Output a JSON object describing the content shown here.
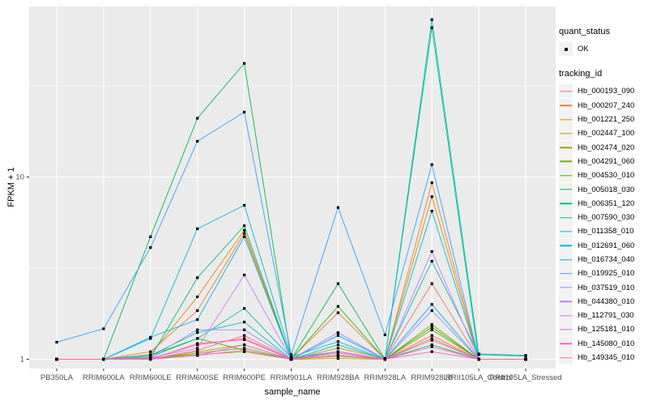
{
  "chart_data": {
    "type": "line",
    "title": "",
    "xlabel": "sample_name",
    "ylabel": "FPKM + 1",
    "y_scale": "log10",
    "y_ticks": [
      1,
      10
    ],
    "y_minor_ticks": [
      3.1623,
      31.623
    ],
    "ylim": [
      0.89,
      87
    ],
    "grid": "on",
    "legend_position": "right",
    "point_shape": "filled-black-square",
    "categories": [
      "PB350LA",
      "RRIM600LA",
      "RRIM600LE",
      "RRIM600SE",
      "RRIM600PE",
      "RRIM901LA",
      "RRIM928BA",
      "RRIM928LA",
      "RRIM928LB",
      "RRII105LA_Control",
      "RRII105LA_Stressed"
    ],
    "series": [
      {
        "name": "Hb_000193_090",
        "color": "#F8766D",
        "values": [
          1.0,
          1.0,
          1.01,
          1.2,
          1.3,
          1.0,
          1.1,
          1.0,
          2.6,
          1.0,
          1.0
        ]
      },
      {
        "name": "Hb_000207_240",
        "color": "#EA8331",
        "values": [
          1.0,
          1.0,
          1.1,
          1.85,
          4.9,
          1.01,
          1.8,
          1.0,
          9.3,
          1.0,
          1.0
        ]
      },
      {
        "name": "Hb_001221_250",
        "color": "#D89000",
        "values": [
          1.0,
          1.0,
          1.06,
          2.2,
          5.1,
          1.0,
          1.15,
          1.01,
          7.8,
          1.0,
          1.0
        ]
      },
      {
        "name": "Hb_002447_100",
        "color": "#C09B00",
        "values": [
          1.0,
          1.0,
          1.0,
          1.1,
          1.2,
          1.0,
          1.05,
          1.0,
          1.3,
          1.0,
          1.0
        ]
      },
      {
        "name": "Hb_002474_020",
        "color": "#A3A500",
        "values": [
          1.0,
          1.0,
          1.01,
          1.06,
          1.1,
          1.0,
          1.01,
          1.0,
          1.45,
          1.0,
          1.0
        ]
      },
      {
        "name": "Hb_004291_060",
        "color": "#7CAE00",
        "values": [
          1.0,
          1.0,
          1.0,
          1.08,
          1.15,
          1.0,
          1.04,
          1.0,
          1.55,
          1.0,
          1.0
        ]
      },
      {
        "name": "Hb_004530_010",
        "color": "#39B600",
        "values": [
          1.0,
          1.0,
          1.05,
          1.3,
          1.12,
          1.0,
          1.95,
          1.0,
          1.5,
          1.0,
          1.0
        ]
      },
      {
        "name": "Hb_005018_030",
        "color": "#00BB4E",
        "values": [
          1.0,
          1.0,
          4.7,
          21.0,
          42.0,
          1.0,
          2.6,
          1.0,
          1.2,
          1.0,
          1.0
        ]
      },
      {
        "name": "Hb_006351_120",
        "color": "#00BF7D",
        "values": [
          1.0,
          1.0,
          1.02,
          2.8,
          5.4,
          1.0,
          1.1,
          1.0,
          66.0,
          1.0,
          1.0
        ]
      },
      {
        "name": "Hb_007590_030",
        "color": "#00C1A3",
        "values": [
          1.0,
          1.0,
          1.03,
          1.3,
          1.9,
          1.02,
          1.1,
          1.0,
          3.45,
          1.06,
          1.04
        ]
      },
      {
        "name": "Hb_011358_010",
        "color": "#00BFC4",
        "values": [
          1.0,
          1.0,
          1.05,
          1.4,
          1.6,
          1.0,
          1.2,
          1.0,
          73.0,
          1.07,
          1.05
        ]
      },
      {
        "name": "Hb_012691_060",
        "color": "#00BAE0",
        "values": [
          1.0,
          1.0,
          1.3,
          5.2,
          7.0,
          1.03,
          1.25,
          1.0,
          6.5,
          1.0,
          1.0
        ]
      },
      {
        "name": "Hb_016734_040",
        "color": "#00B0F6",
        "values": [
          1.0,
          1.0,
          1.32,
          1.65,
          4.7,
          1.0,
          1.35,
          1.0,
          2.0,
          1.0,
          1.0
        ]
      },
      {
        "name": "Hb_019925_010",
        "color": "#35A2FF",
        "values": [
          1.24,
          1.47,
          4.1,
          15.7,
          22.7,
          1.06,
          6.8,
          1.36,
          11.7,
          1.0,
          1.0
        ]
      },
      {
        "name": "Hb_037519_010",
        "color": "#9590FF",
        "values": [
          1.0,
          1.0,
          1.02,
          1.45,
          1.45,
          1.0,
          1.4,
          1.0,
          1.85,
          1.0,
          1.0
        ]
      },
      {
        "name": "Hb_044380_010",
        "color": "#C77CFF",
        "values": [
          1.0,
          1.0,
          1.02,
          1.15,
          2.9,
          1.0,
          1.4,
          1.0,
          3.9,
          1.0,
          1.0
        ]
      },
      {
        "name": "Hb_112791_030",
        "color": "#E76BF3",
        "values": [
          1.0,
          1.0,
          1.0,
          1.05,
          1.2,
          1.0,
          1.1,
          1.0,
          1.27,
          1.0,
          1.0
        ]
      },
      {
        "name": "Hb_125181_010",
        "color": "#FA62DB",
        "values": [
          1.0,
          1.0,
          1.0,
          1.05,
          1.12,
          1.0,
          1.05,
          1.0,
          1.17,
          1.0,
          1.0
        ]
      },
      {
        "name": "Hb_145080_010",
        "color": "#FF62BC",
        "values": [
          1.0,
          1.0,
          1.0,
          1.22,
          1.28,
          1.0,
          1.05,
          1.0,
          1.1,
          1.0,
          1.0
        ]
      },
      {
        "name": "Hb_149345_010",
        "color": "#FF6A98",
        "values": [
          1.0,
          1.0,
          1.0,
          1.12,
          1.35,
          1.0,
          1.08,
          1.0,
          1.35,
          1.0,
          1.0
        ]
      }
    ]
  },
  "legend": {
    "quant_status_title": "quant_status",
    "quant_status_items": [
      "OK"
    ],
    "tracking_id_title": "tracking_id"
  },
  "style_colors": {
    "panel_bg": "#EBEBEB",
    "grid": "#FFFFFF",
    "axis_text": "#4D4D4D",
    "tick": "#333333",
    "point": "#000000",
    "legend_key_bg": "#F2F2F2"
  }
}
